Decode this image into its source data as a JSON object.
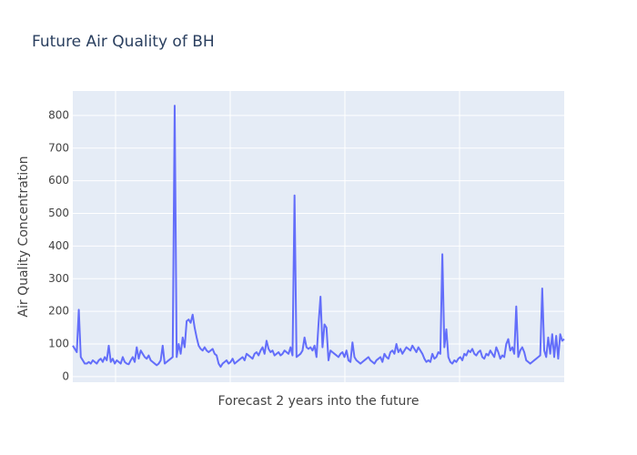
{
  "chart_data": {
    "type": "line",
    "title": "Future Air Quality of BH",
    "xlabel": "Forecast 2 years into the future",
    "ylabel": "Air Quality Concentration",
    "color": "#636efa",
    "grid": true,
    "ylim": [
      -17,
      875
    ],
    "yticks": [
      0,
      100,
      200,
      300,
      400,
      500,
      600,
      700,
      800
    ],
    "values": [
      95,
      85,
      75,
      205,
      60,
      50,
      40,
      40,
      45,
      40,
      50,
      45,
      40,
      50,
      55,
      45,
      60,
      50,
      95,
      45,
      55,
      40,
      50,
      45,
      40,
      60,
      45,
      40,
      38,
      50,
      60,
      45,
      90,
      55,
      80,
      70,
      60,
      55,
      65,
      50,
      45,
      40,
      35,
      40,
      50,
      95,
      40,
      45,
      50,
      55,
      60,
      830,
      60,
      100,
      70,
      120,
      90,
      170,
      175,
      165,
      190,
      150,
      120,
      95,
      85,
      80,
      90,
      80,
      75,
      80,
      85,
      70,
      65,
      40,
      30,
      40,
      45,
      50,
      40,
      45,
      55,
      40,
      45,
      50,
      55,
      60,
      50,
      70,
      65,
      60,
      55,
      70,
      75,
      65,
      80,
      90,
      70,
      110,
      85,
      75,
      80,
      65,
      70,
      75,
      65,
      70,
      80,
      75,
      70,
      90,
      65,
      555,
      60,
      65,
      70,
      80,
      120,
      90,
      85,
      90,
      80,
      95,
      60,
      160,
      245,
      90,
      160,
      150,
      50,
      80,
      75,
      70,
      65,
      60,
      70,
      75,
      60,
      80,
      50,
      45,
      105,
      60,
      50,
      45,
      40,
      45,
      50,
      55,
      60,
      50,
      45,
      40,
      50,
      55,
      60,
      45,
      70,
      60,
      55,
      75,
      80,
      70,
      100,
      75,
      85,
      70,
      80,
      90,
      85,
      80,
      95,
      85,
      75,
      90,
      80,
      70,
      55,
      45,
      50,
      45,
      70,
      55,
      60,
      75,
      70,
      375,
      90,
      145,
      60,
      45,
      40,
      50,
      45,
      55,
      60,
      50,
      70,
      65,
      80,
      75,
      85,
      70,
      65,
      75,
      80,
      60,
      55,
      70,
      65,
      80,
      70,
      60,
      90,
      75,
      55,
      65,
      60,
      100,
      115,
      80,
      90,
      70,
      215,
      60,
      80,
      90,
      75,
      50,
      45,
      40,
      45,
      50,
      55,
      60,
      65,
      270,
      80,
      60,
      120,
      70,
      130,
      60,
      125,
      55,
      130,
      110,
      115
    ]
  }
}
